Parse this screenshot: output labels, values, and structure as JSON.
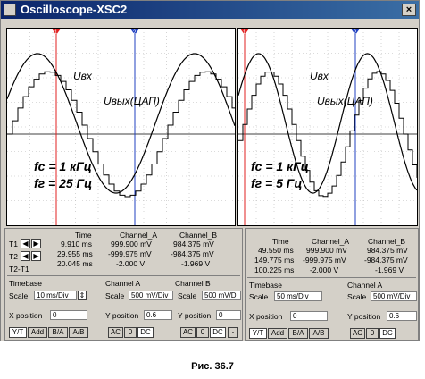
{
  "window": {
    "title": "Oscilloscope-XSC2",
    "close_glyph": "×"
  },
  "screens": [
    {
      "labels": {
        "input_label": "Uвх",
        "output_label": "Uвых(ЦАП)",
        "fc": "fc = 1 кГц",
        "fs": "fг = 25 Гц"
      },
      "cursor_labels": {
        "t1": "1",
        "t2": "2"
      }
    },
    {
      "labels": {
        "input_label": "Uвх",
        "output_label": "Uвых(ЦАП)",
        "fc": "fc = 1 кГц",
        "fs": "fг = 5 Гц"
      },
      "cursor_labels": {
        "t1": "1",
        "t2": "2"
      }
    }
  ],
  "readout": {
    "headers": {
      "time": "Time",
      "a": "Channel_A",
      "b": "Channel_B"
    },
    "row_labels": {
      "t1": "T1",
      "t2": "T2",
      "t2t1": "T2-T1"
    },
    "left": {
      "t1": {
        "time": "9.910 ms",
        "a": "999.900 mV",
        "b": "984.375 mV"
      },
      "t2": {
        "time": "29.955 ms",
        "a": "-999.975 mV",
        "b": "-984.375 mV"
      },
      "d": {
        "time": "20.045 ms",
        "a": "-2.000 V",
        "b": "-1.969 V"
      }
    },
    "right": {
      "t1": {
        "time": "49.550 ms",
        "a": "999.900 mV",
        "b": "984.375 mV"
      },
      "t2": {
        "time": "149.775 ms",
        "a": "-999.975 mV",
        "b": "-984.375 mV"
      },
      "d": {
        "time": "100.225 ms",
        "a": "-2.000 V",
        "b": "-1.969 V"
      }
    }
  },
  "controls": {
    "left": {
      "timebase": "Timebase",
      "channel_a": "Channel A",
      "channel_b": "Channel B",
      "scale": "Scale",
      "tb_scale": "10 ms/Div",
      "a_scale": "500 mV/Div",
      "b_scale": "500 mV/Di",
      "xpos_label": "X position",
      "xpos": "0",
      "ypos_label": "Y position",
      "a_ypos": "0.6",
      "b_ypos": "0",
      "btns": [
        "Y/T",
        "Add",
        "B/A",
        "A/B"
      ],
      "coupling": [
        "AC",
        "0",
        "DC"
      ],
      "dash": "-"
    },
    "right": {
      "timebase": "Timebase",
      "channel_a": "Channel A",
      "scale": "Scale",
      "tb_scale": "50 ms/Div",
      "a_scale": "500 mV/Div",
      "xpos_label": "X position",
      "xpos": "0",
      "ypos_label": "Y position",
      "a_ypos": "0.6",
      "btns": [
        "Y/T",
        "Add",
        "B/A",
        "A/B"
      ],
      "coupling": [
        "AC",
        "0",
        "DC"
      ]
    }
  },
  "caption": "Рис. 36.7",
  "colors": {
    "t1": "#e02020",
    "t2": "#2040c0",
    "grid": "#b8b8b8",
    "trace": "#000000"
  }
}
